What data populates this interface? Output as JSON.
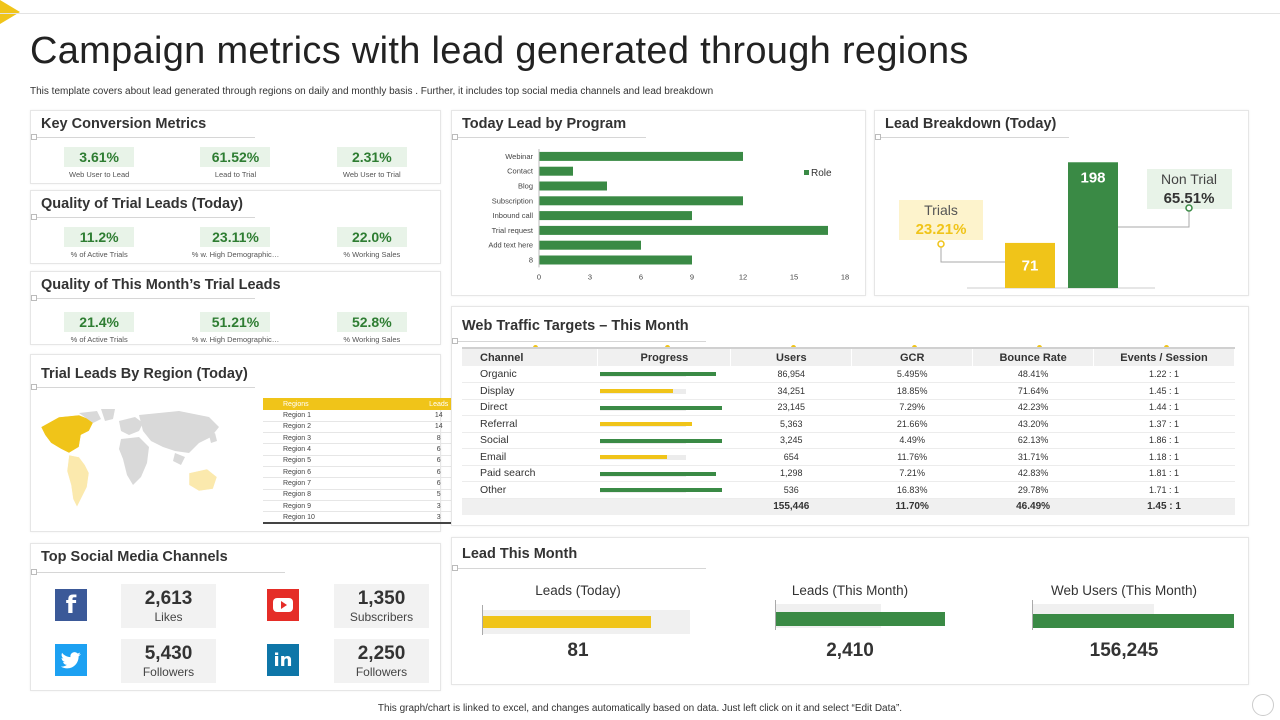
{
  "page": {
    "title": "Campaign metrics with lead generated through regions",
    "subtitle": "This template covers about lead generated through regions on daily and monthly basis . Further, it includes top social media channels and lead breakdown",
    "footer": "This graph/chart is linked to excel, and changes automatically based on data. Just left click on it and select “Edit Data”."
  },
  "colors": {
    "green": "#3a8a45",
    "yellow": "#f0c419",
    "panel_border": "#e6e6e6"
  },
  "key_conversion": {
    "title": "Key Conversion Metrics",
    "items": [
      {
        "value": "3.61%",
        "label": "Web User to Lead"
      },
      {
        "value": "61.52%",
        "label": "Lead to Trial"
      },
      {
        "value": "2.31%",
        "label": "Web User to Trial"
      }
    ]
  },
  "quality_today": {
    "title": "Quality of Trial Leads (Today)",
    "items": [
      {
        "value": "11.2%",
        "label": "% of Active Trials"
      },
      {
        "value": "23.11%",
        "label": "% w. High Demographic…"
      },
      {
        "value": "22.0%",
        "label": "% Working Sales"
      }
    ]
  },
  "quality_month": {
    "title": "Quality of This Month’s Trial Leads",
    "items": [
      {
        "value": "21.4%",
        "label": "% of Active Trials"
      },
      {
        "value": "51.21%",
        "label": "% w. High Demographic…"
      },
      {
        "value": "52.8%",
        "label": "% Working Sales"
      }
    ]
  },
  "trial_region": {
    "title": "Trial Leads By Region (Today)",
    "headers": [
      "Regions",
      "Leads"
    ],
    "rows": [
      [
        "Region 1",
        "14"
      ],
      [
        "Region 2",
        "14"
      ],
      [
        "Region 3",
        "8"
      ],
      [
        "Region 4",
        "6"
      ],
      [
        "Region 5",
        "6"
      ],
      [
        "Region 6",
        "6"
      ],
      [
        "Region 7",
        "6"
      ],
      [
        "Region 8",
        "5"
      ],
      [
        "Region 9",
        "3"
      ],
      [
        "Region 10",
        "3"
      ]
    ]
  },
  "social": {
    "title": "Top Social Media Channels",
    "items": [
      {
        "icon": "facebook-icon",
        "glyph": "f",
        "color": "#3b5998",
        "value": "2,613",
        "label": "Likes"
      },
      {
        "icon": "youtube-icon",
        "glyph": "▶",
        "color": "#e52d27",
        "value": "1,350",
        "label": "Subscribers"
      },
      {
        "icon": "twitter-icon",
        "glyph": "🐦",
        "color": "#1da1f2",
        "value": "5,430",
        "label": "Followers"
      },
      {
        "icon": "linkedin-icon",
        "glyph": "in",
        "color": "#0e76a8",
        "value": "2,250",
        "label": "Followers"
      }
    ]
  },
  "today_lead": {
    "title": "Today Lead by Program",
    "legend": "Role"
  },
  "lead_breakdown": {
    "title": "Lead Breakdown (Today)",
    "trials_label": "Trials",
    "trials_pct": "23.21%",
    "nontrial_label": "Non Trial",
    "nontrial_pct": "65.51%"
  },
  "web_traffic": {
    "title": "Web Traffic Targets – This Month",
    "headers": [
      "Channel",
      "Progress",
      "Users",
      "GCR",
      "Bounce Rate",
      "Events / Session"
    ],
    "rows": [
      {
        "channel": "Organic",
        "progress": 0.95,
        "pcolor": "green",
        "users": "86,954",
        "gcr": "5.495%",
        "bounce": "48.41%",
        "events": "1.22 : 1"
      },
      {
        "channel": "Display",
        "progress": 0.6,
        "pcolor": "yellow",
        "users": "34,251",
        "gcr": "18.85%",
        "bounce": "71.64%",
        "events": "1.45 : 1"
      },
      {
        "channel": "Direct",
        "progress": 1.0,
        "pcolor": "green",
        "users": "23,145",
        "gcr": "7.29%",
        "bounce": "42.23%",
        "events": "1.44 : 1"
      },
      {
        "channel": "Referral",
        "progress": 0.75,
        "pcolor": "yellow",
        "users": "5,363",
        "gcr": "21.66%",
        "bounce": "43.20%",
        "events": "1.37 : 1"
      },
      {
        "channel": "Social",
        "progress": 1.0,
        "pcolor": "green",
        "users": "3,245",
        "gcr": "4.49%",
        "bounce": "62.13%",
        "events": "1.86 : 1"
      },
      {
        "channel": "Email",
        "progress": 0.55,
        "pcolor": "yellow",
        "users": "654",
        "gcr": "11.76%",
        "bounce": "31.71%",
        "events": "1.18 : 1"
      },
      {
        "channel": "Paid search",
        "progress": 0.95,
        "pcolor": "green",
        "users": "1,298",
        "gcr": "7.21%",
        "bounce": "42.83%",
        "events": "1.81 : 1"
      },
      {
        "channel": "Other",
        "progress": 1.0,
        "pcolor": "green",
        "users": "536",
        "gcr": "16.83%",
        "bounce": "29.78%",
        "events": "1.71 : 1"
      }
    ],
    "totals": {
      "users": "155,446",
      "gcr": "11.70%",
      "bounce": "46.49%",
      "events": "1.45 : 1"
    }
  },
  "lead_month": {
    "title": "Lead This Month",
    "items": [
      {
        "label": "Leads (Today)",
        "value": "81",
        "fill": 0.81,
        "color": "yellow"
      },
      {
        "label": "Leads (This Month)",
        "value": "2,410",
        "fill": 1.0,
        "color": "green"
      },
      {
        "label": "Web Users (This Month)",
        "value": "156,245",
        "fill": 1.0,
        "color": "green"
      }
    ]
  },
  "chart_data": [
    {
      "type": "bar",
      "orientation": "horizontal",
      "title": "Today Lead by Program",
      "categories": [
        "Webinar",
        "Contact",
        "Blog",
        "Subscription",
        "Inbound call",
        "Trial request",
        "Add text here",
        "8"
      ],
      "series": [
        {
          "name": "Role",
          "values": [
            12,
            2,
            4,
            12,
            9,
            17,
            6,
            9
          ]
        }
      ],
      "xlim": [
        0,
        18
      ],
      "xticks": [
        "0",
        "3",
        "6",
        "9",
        "12",
        "15",
        "18"
      ],
      "legend": "right"
    },
    {
      "type": "bar",
      "title": "Lead Breakdown (Today)",
      "categories": [
        "Trials",
        "Non Trial"
      ],
      "values": [
        71,
        198
      ],
      "percent_labels": [
        "23.21%",
        "65.51%"
      ],
      "ylim": [
        0,
        200
      ]
    }
  ]
}
